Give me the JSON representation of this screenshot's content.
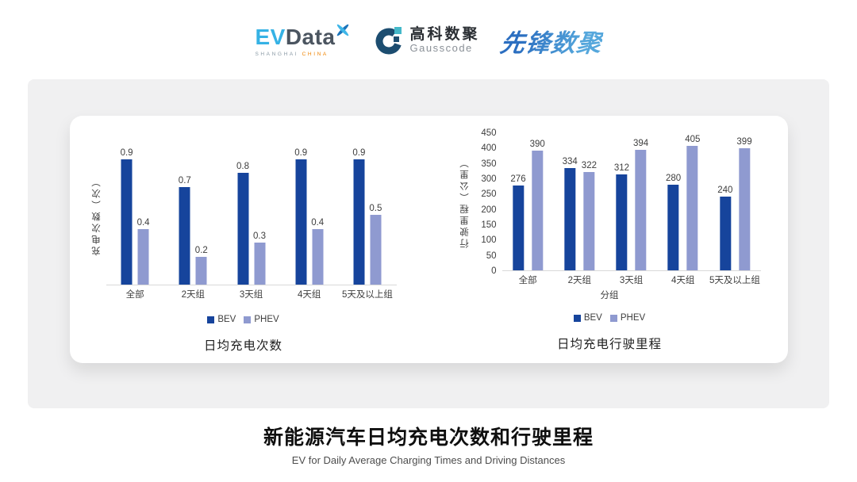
{
  "header": {
    "evdata": {
      "ev": "EV",
      "data": "Data",
      "sub_left": "SHANGHAI",
      "sub_right": "CHINA"
    },
    "gausscode": {
      "cn": "高科数聚",
      "en": "Gausscode"
    },
    "xianfeng": "先锋数聚"
  },
  "colors": {
    "bev": "#16449c",
    "phev": "#8f9ad0",
    "axis_text": "#3d3d3d",
    "baseline": "#d9d9d9",
    "panel_bg": "#f0f0f1",
    "evdata_blue": "#35b2e5",
    "evdata_dark": "#4b5560",
    "china_orange": "#f08300",
    "gauss_navy": "#1c4d70",
    "gauss_cyan": "#44b8c9",
    "xianfeng_blue": "#2b6ec0"
  },
  "chart_data": [
    {
      "type": "bar",
      "title": "日均充电次数",
      "ylabel": "充电次数（次）",
      "xlabel": "",
      "categories": [
        "全部",
        "2天组",
        "3天组",
        "4天组",
        "5天及以上组"
      ],
      "series": [
        {
          "name": "BEV",
          "values": [
            0.9,
            0.7,
            0.8,
            0.9,
            0.9
          ]
        },
        {
          "name": "PHEV",
          "values": [
            0.4,
            0.2,
            0.3,
            0.4,
            0.5
          ]
        }
      ],
      "ylim": [
        0,
        1.0
      ],
      "yticks": [],
      "grid": false,
      "legend_position": "bottom"
    },
    {
      "type": "bar",
      "title": "日均充电行驶里程",
      "ylabel": "行驶里程（公里）",
      "xlabel": "分组",
      "categories": [
        "全部",
        "2天组",
        "3天组",
        "4天组",
        "5天及以上组"
      ],
      "series": [
        {
          "name": "BEV",
          "values": [
            276,
            334,
            312,
            280,
            240
          ]
        },
        {
          "name": "PHEV",
          "values": [
            390,
            322,
            394,
            405,
            399
          ]
        }
      ],
      "ylim": [
        0,
        450
      ],
      "yticks": [
        0,
        50,
        100,
        150,
        200,
        250,
        300,
        350,
        400,
        450
      ],
      "grid": false,
      "legend_position": "bottom"
    }
  ],
  "footer": {
    "title": "新能源汽车日均充电次数和行驶里程",
    "subtitle": "EV for Daily Average Charging Times and Driving Distances"
  }
}
